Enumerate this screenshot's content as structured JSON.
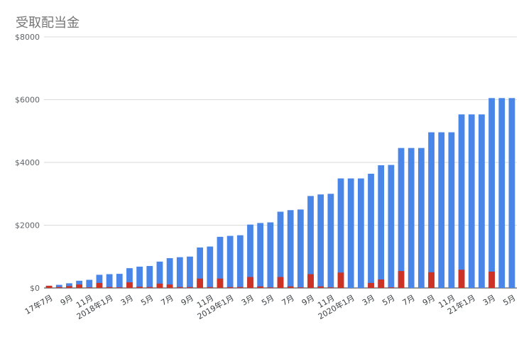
{
  "chart_data": {
    "type": "bar",
    "title": "受取配当金",
    "xlabel": "",
    "ylabel": "",
    "ylim": [
      0,
      8000
    ],
    "y_ticks": [
      0,
      2000,
      4000,
      6000,
      8000
    ],
    "y_tick_labels": [
      "$0",
      "$2000",
      "$4000",
      "$6000",
      "$8000"
    ],
    "x_tick_labels": [
      {
        "index": 0,
        "label": "17年7月"
      },
      {
        "index": 2,
        "label": "9月"
      },
      {
        "index": 4,
        "label": "11月"
      },
      {
        "index": 6,
        "label": "2018年1月"
      },
      {
        "index": 8,
        "label": "3月"
      },
      {
        "index": 10,
        "label": "5月"
      },
      {
        "index": 12,
        "label": "7月"
      },
      {
        "index": 14,
        "label": "9月"
      },
      {
        "index": 16,
        "label": "11月"
      },
      {
        "index": 18,
        "label": "2019年1月"
      },
      {
        "index": 20,
        "label": "3月"
      },
      {
        "index": 22,
        "label": "5月"
      },
      {
        "index": 24,
        "label": "7月"
      },
      {
        "index": 26,
        "label": "9月"
      },
      {
        "index": 28,
        "label": "11月"
      },
      {
        "index": 30,
        "label": "2020年1月"
      },
      {
        "index": 32,
        "label": "3月"
      },
      {
        "index": 34,
        "label": "5月"
      },
      {
        "index": 36,
        "label": "7月"
      },
      {
        "index": 38,
        "label": "9月"
      },
      {
        "index": 40,
        "label": "11月"
      },
      {
        "index": 42,
        "label": "21年1月"
      },
      {
        "index": 44,
        "label": "3月"
      },
      {
        "index": 46,
        "label": "5月"
      }
    ],
    "grid": true,
    "legend": "none",
    "bar_mode": "overlap",
    "series": [
      {
        "color": "#4a86e8",
        "values": [
          70,
          100,
          150,
          230,
          260,
          420,
          440,
          450,
          630,
          680,
          700,
          840,
          950,
          980,
          1000,
          1290,
          1320,
          1630,
          1660,
          1680,
          2020,
          2070,
          2090,
          2430,
          2480,
          2500,
          2930,
          2980,
          3000,
          3490,
          3490,
          3490,
          3640,
          3910,
          3920,
          4460,
          4460,
          4460,
          4960,
          4960,
          4960,
          5530,
          5530,
          5530,
          6050,
          6050,
          6050
        ]
      },
      {
        "color": "#cc3324",
        "values": [
          70,
          30,
          60,
          110,
          20,
          160,
          30,
          20,
          180,
          40,
          30,
          140,
          110,
          30,
          30,
          300,
          30,
          300,
          30,
          30,
          350,
          50,
          20,
          350,
          50,
          20,
          440,
          50,
          20,
          490,
          0,
          0,
          160,
          270,
          20,
          540,
          0,
          0,
          500,
          0,
          0,
          580,
          0,
          0,
          520,
          0,
          0
        ]
      }
    ]
  }
}
